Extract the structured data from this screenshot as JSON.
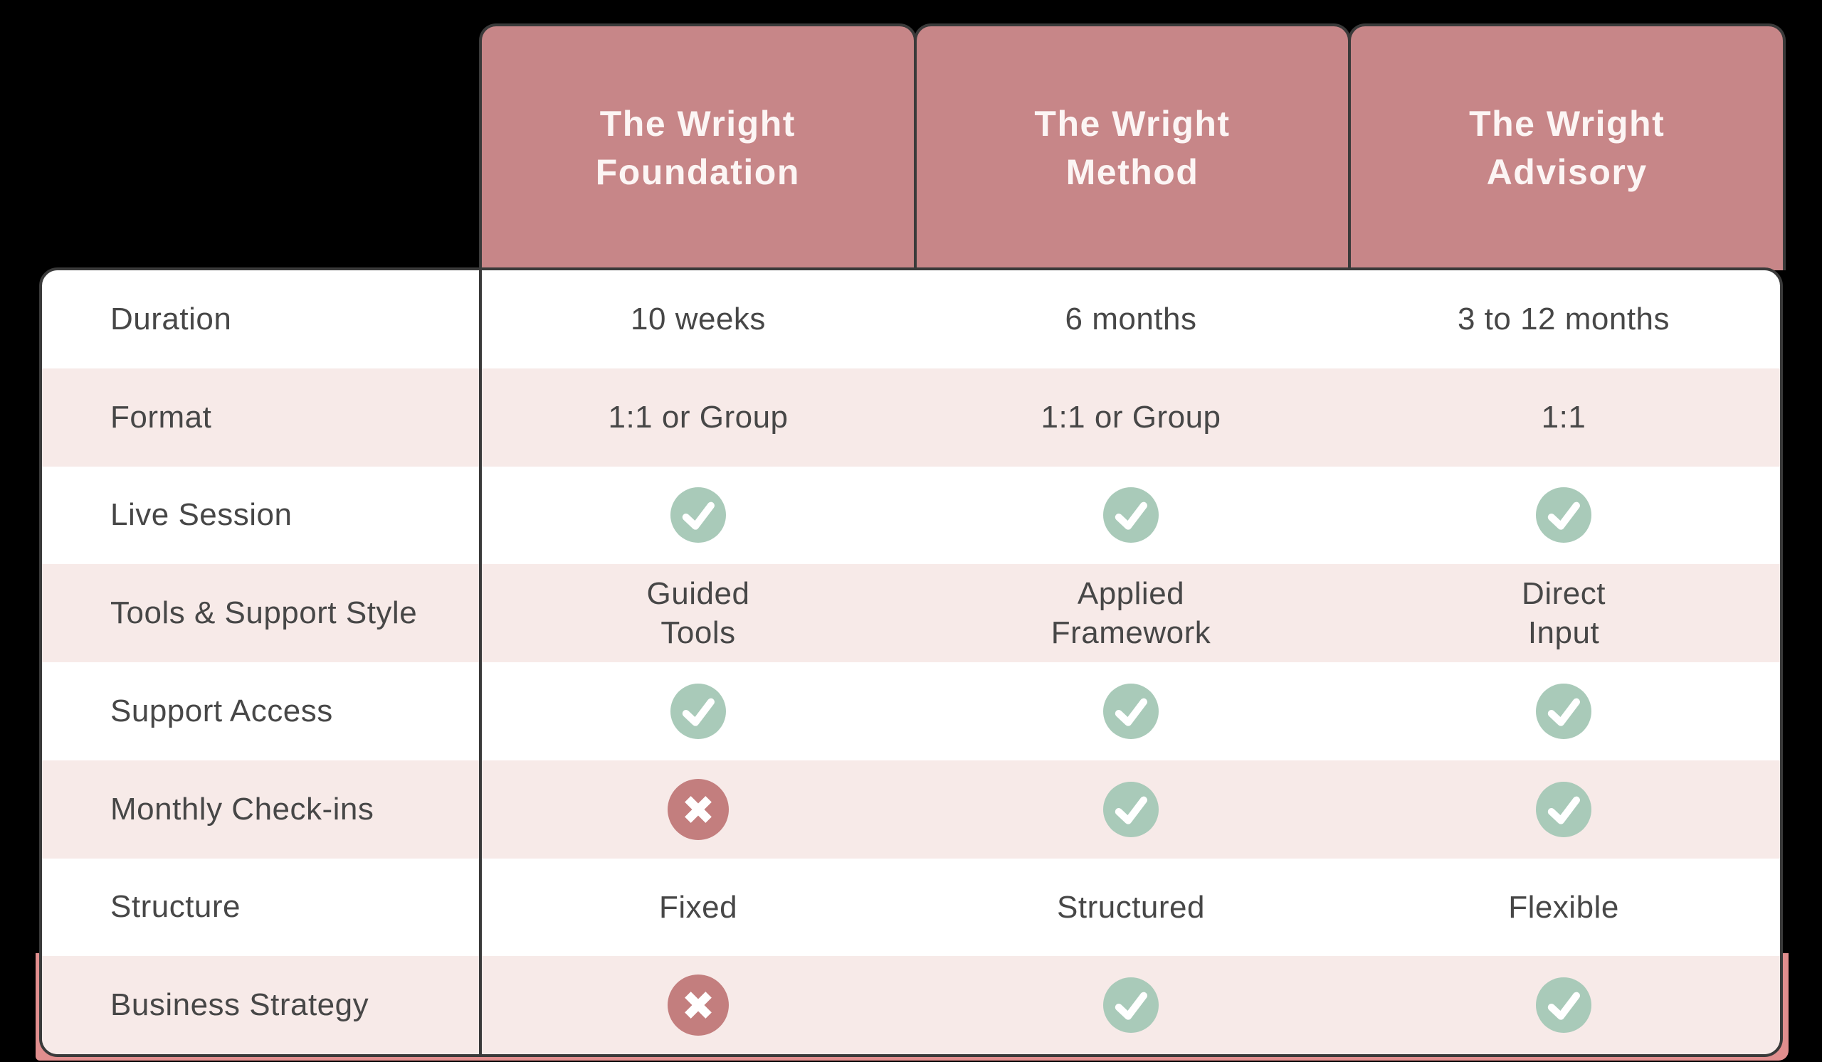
{
  "table": {
    "columns": [
      {
        "title": "The Wright\nFoundation"
      },
      {
        "title": "The Wright\nMethod"
      },
      {
        "title": "The Wright\nAdvisory"
      }
    ],
    "rows": [
      {
        "label": "Duration",
        "values": [
          {
            "type": "text",
            "text": "10 weeks"
          },
          {
            "type": "text",
            "text": "6 months"
          },
          {
            "type": "text",
            "text": "3 to 12 months"
          }
        ]
      },
      {
        "label": "Format",
        "values": [
          {
            "type": "text",
            "text": "1:1 or Group"
          },
          {
            "type": "text",
            "text": "1:1 or Group"
          },
          {
            "type": "text",
            "text": "1:1"
          }
        ]
      },
      {
        "label": "Live Session",
        "values": [
          {
            "type": "check"
          },
          {
            "type": "check"
          },
          {
            "type": "check"
          }
        ]
      },
      {
        "label": "Tools & Support Style",
        "values": [
          {
            "type": "text",
            "text": "Guided\nTools"
          },
          {
            "type": "text",
            "text": "Applied\nFramework"
          },
          {
            "type": "text",
            "text": "Direct\nInput"
          }
        ]
      },
      {
        "label": "Support Access",
        "values": [
          {
            "type": "check"
          },
          {
            "type": "check"
          },
          {
            "type": "check"
          }
        ]
      },
      {
        "label": "Monthly Check-ins",
        "values": [
          {
            "type": "cross"
          },
          {
            "type": "check"
          },
          {
            "type": "check"
          }
        ]
      },
      {
        "label": "Structure",
        "values": [
          {
            "type": "text",
            "text": "Fixed"
          },
          {
            "type": "text",
            "text": "Structured"
          },
          {
            "type": "text",
            "text": "Flexible"
          }
        ]
      },
      {
        "label": "Business Strategy",
        "values": [
          {
            "type": "cross"
          },
          {
            "type": "check"
          },
          {
            "type": "check"
          }
        ]
      }
    ]
  },
  "icons": {
    "check": "check-icon",
    "cross": "x-icon"
  },
  "colors": {
    "background": "#000000",
    "header_pink": "#c78688",
    "header_text": "#fcf5f4",
    "stripe_pink": "#f7eae8",
    "row_white": "#ffffff",
    "border_dark": "#3a3a3a",
    "body_text": "#474747",
    "check_green": "#a9cab9",
    "cross_red": "#c37e7e",
    "backing_red": "#e18e8e"
  }
}
